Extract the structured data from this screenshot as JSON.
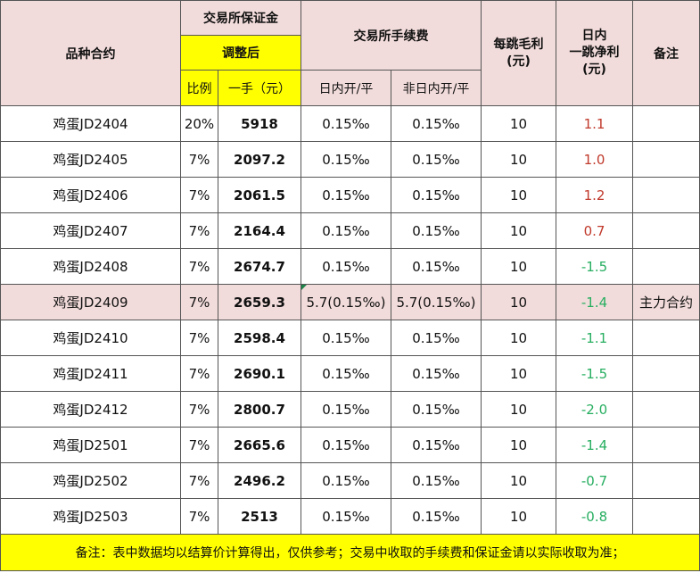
{
  "headers": {
    "variety": "品种合约",
    "margin_group": "交易所保证金",
    "adjusted": "调整后",
    "ratio": "比例",
    "per_lot": "一手（元）",
    "fee_group": "交易所手续费",
    "intraday": "日内开/平",
    "non_intraday": "非日内开/平",
    "tick_profit_line1": "每跳毛利",
    "tick_profit_line2": "(元)",
    "net_line1": "日内",
    "net_line2": "一跳净利",
    "net_line3": "(元)",
    "remark": "备注"
  },
  "rows": [
    {
      "contract": "鸡蛋JD2404",
      "ratio": "20%",
      "per_lot": "5918",
      "intraday": "0.15‰",
      "non_intraday": "0.15‰",
      "tick": "10",
      "net": "1.1",
      "remark": ""
    },
    {
      "contract": "鸡蛋JD2405",
      "ratio": "7%",
      "per_lot": "2097.2",
      "intraday": "0.15‰",
      "non_intraday": "0.15‰",
      "tick": "10",
      "net": "1.0",
      "remark": ""
    },
    {
      "contract": "鸡蛋JD2406",
      "ratio": "7%",
      "per_lot": "2061.5",
      "intraday": "0.15‰",
      "non_intraday": "0.15‰",
      "tick": "10",
      "net": "1.2",
      "remark": ""
    },
    {
      "contract": "鸡蛋JD2407",
      "ratio": "7%",
      "per_lot": "2164.4",
      "intraday": "0.15‰",
      "non_intraday": "0.15‰",
      "tick": "10",
      "net": "0.7",
      "remark": ""
    },
    {
      "contract": "鸡蛋JD2408",
      "ratio": "7%",
      "per_lot": "2674.7",
      "intraday": "0.15‰",
      "non_intraday": "0.15‰",
      "tick": "10",
      "net": "-1.5",
      "remark": ""
    },
    {
      "contract": "鸡蛋JD2409",
      "ratio": "7%",
      "per_lot": "2659.3",
      "intraday": "5.7(0.15‰)",
      "non_intraday": "5.7(0.15‰)",
      "tick": "10",
      "net": "-1.4",
      "remark": "主力合约"
    },
    {
      "contract": "鸡蛋JD2410",
      "ratio": "7%",
      "per_lot": "2598.4",
      "intraday": "0.15‰",
      "non_intraday": "0.15‰",
      "tick": "10",
      "net": "-1.1",
      "remark": ""
    },
    {
      "contract": "鸡蛋JD2411",
      "ratio": "7%",
      "per_lot": "2690.1",
      "intraday": "0.15‰",
      "non_intraday": "0.15‰",
      "tick": "10",
      "net": "-1.5",
      "remark": ""
    },
    {
      "contract": "鸡蛋JD2412",
      "ratio": "7%",
      "per_lot": "2800.7",
      "intraday": "0.15‰",
      "non_intraday": "0.15‰",
      "tick": "10",
      "net": "-2.0",
      "remark": ""
    },
    {
      "contract": "鸡蛋JD2501",
      "ratio": "7%",
      "per_lot": "2665.6",
      "intraday": "0.15‰",
      "non_intraday": "0.15‰",
      "tick": "10",
      "net": "-1.4",
      "remark": ""
    },
    {
      "contract": "鸡蛋JD2502",
      "ratio": "7%",
      "per_lot": "2496.2",
      "intraday": "0.15‰",
      "non_intraday": "0.15‰",
      "tick": "10",
      "net": "-0.7",
      "remark": ""
    },
    {
      "contract": "鸡蛋JD2503",
      "ratio": "7%",
      "per_lot": "2513",
      "intraday": "0.15‰",
      "non_intraday": "0.15‰",
      "tick": "10",
      "net": "-0.8",
      "remark": ""
    }
  ],
  "footnote": "备注：表中数据均以结算价计算得出，仅供参考；交易中收取的手续费和保证金请以实际收取为准；",
  "colors": {
    "header_bg": "#f2dcdb",
    "highlight": "#ffff00",
    "main_row_bg": "#f2dcdb",
    "positive": "#c0392b",
    "negative": "#27ae60"
  }
}
